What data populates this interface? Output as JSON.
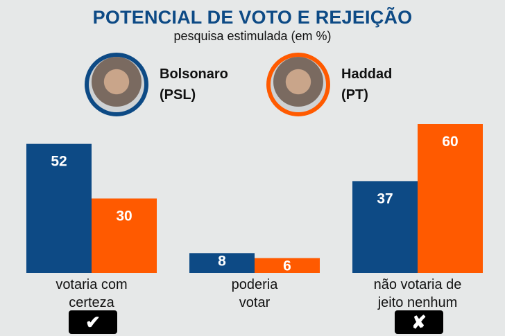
{
  "colors": {
    "bolsonaro": "#0d4a85",
    "haddad": "#ff5a00",
    "title": "#0d4a85"
  },
  "chart_data": {
    "type": "bar",
    "title": "POTENCIAL DE VOTO E REJEIÇÃO",
    "subtitle": "pesquisa estimulada (em %)",
    "categories": [
      "votaria com certeza",
      "poderia votar",
      "não votaria de jeito nenhum"
    ],
    "categories_lines": [
      [
        "votaria com",
        "certeza"
      ],
      [
        "poderia",
        "votar"
      ],
      [
        "não votaria de",
        "jeito nenhum"
      ]
    ],
    "series": [
      {
        "name": "Bolsonaro (PSL)",
        "name_lines": [
          "Bolsonaro",
          "(PSL)"
        ],
        "values": [
          52,
          8,
          37
        ]
      },
      {
        "name": "Haddad (PT)",
        "name_lines": [
          "Haddad",
          "(PT)"
        ],
        "values": [
          30,
          6,
          60
        ]
      }
    ],
    "ylim": [
      0,
      60
    ],
    "legend": "top",
    "grid": false
  },
  "marks": {
    "check": "✔",
    "cross": "✘"
  }
}
